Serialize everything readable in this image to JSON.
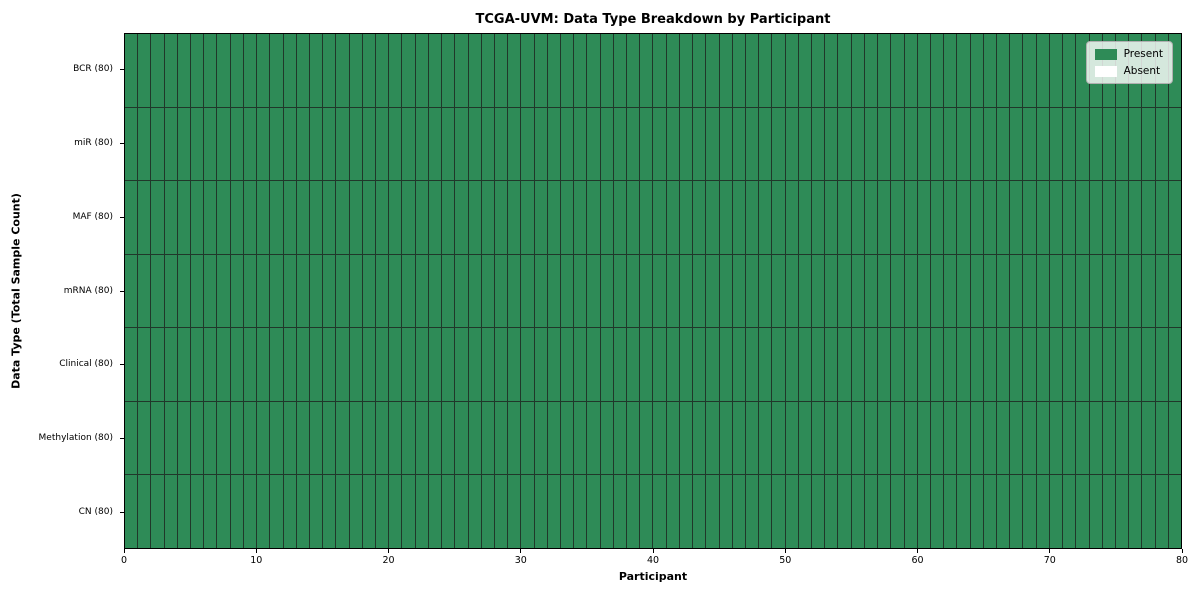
{
  "chart_data": {
    "type": "heatmap",
    "title": "TCGA-UVM: Data Type Breakdown by Participant",
    "xlabel": "Participant",
    "ylabel": "Data Type (Total Sample Count)",
    "x_range": [
      0,
      80
    ],
    "x_ticks": [
      0,
      10,
      20,
      30,
      40,
      50,
      60,
      70,
      80
    ],
    "n_participants": 80,
    "categories": [
      "BCR (80)",
      "miR (80)",
      "MAF (80)",
      "mRNA (80)",
      "Clinical (80)",
      "Methylation (80)",
      "CN (80)"
    ],
    "series": [
      {
        "name": "BCR (80)",
        "present_count": 80,
        "absent_count": 0
      },
      {
        "name": "miR (80)",
        "present_count": 80,
        "absent_count": 0
      },
      {
        "name": "MAF (80)",
        "present_count": 80,
        "absent_count": 0
      },
      {
        "name": "mRNA (80)",
        "present_count": 80,
        "absent_count": 0
      },
      {
        "name": "Clinical (80)",
        "present_count": 80,
        "absent_count": 0
      },
      {
        "name": "Methylation (80)",
        "present_count": 80,
        "absent_count": 0
      },
      {
        "name": "CN (80)",
        "present_count": 80,
        "absent_count": 0
      }
    ],
    "legend": [
      {
        "label": "Present",
        "color": "#2e8b57"
      },
      {
        "label": "Absent",
        "color": "#ffffff"
      }
    ],
    "legend_position": "upper right",
    "grid": "cell-borders",
    "colors": {
      "present": "#2e8b57",
      "absent": "#ffffff",
      "cell_edge": "#20382a",
      "axis": "#000000"
    }
  }
}
